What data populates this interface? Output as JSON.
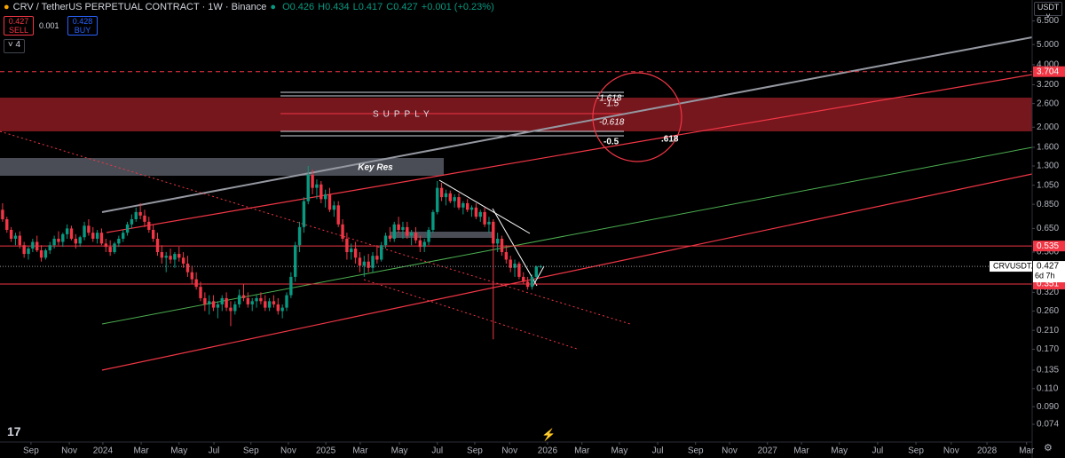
{
  "ui": {
    "symbol": "CRV / TetherUS PERPETUAL CONTRACT · 1W · Binance",
    "quote": [
      "O0.426",
      "H0.434",
      "L0.417",
      "C0.427",
      "+0.001 (+0.23%)"
    ],
    "sell_price": 0.427,
    "sell": "SELL",
    "spread": 0.001,
    "buy_price": 0.428,
    "buy": "BUY",
    "indicators": "4",
    "currency": "USDT",
    "ticker": "CRVUSDT.P",
    "countdown": "6d 7h",
    "logo": "17"
  },
  "chart_data": {
    "type": "candlestick",
    "log_scale": true,
    "up_color": "#089981",
    "down_color": "#f23645",
    "annotations": [
      "SUPPLY",
      "Key Res",
      "-1.618",
      "-1.5",
      "-0.618",
      "-0.5",
      ".618"
    ],
    "price_lines": [
      {
        "value": 3.704,
        "color": "#f23645",
        "dashed": true
      },
      {
        "value": 0.535,
        "color": "#f23645",
        "dashed": false
      },
      {
        "value": 0.351,
        "color": "#f23645",
        "dashed": false
      }
    ],
    "xlim": [
      -0.6,
      239.2
    ],
    "xticks": [
      {
        "value": 6.6,
        "label": "Sep"
      },
      {
        "value": 15.5,
        "label": "Nov"
      },
      {
        "value": 23.3,
        "label": "2024"
      },
      {
        "value": 32.2,
        "label": "Mar"
      },
      {
        "value": 41.0,
        "label": "May"
      },
      {
        "value": 49.1,
        "label": "Jul"
      },
      {
        "value": 57.7,
        "label": "Sep"
      },
      {
        "value": 66.4,
        "label": "Nov"
      },
      {
        "value": 75.1,
        "label": "2025"
      },
      {
        "value": 83.1,
        "label": "Mar"
      },
      {
        "value": 92.2,
        "label": "May"
      },
      {
        "value": 101.0,
        "label": "Jul"
      },
      {
        "value": 109.7,
        "label": "Sep"
      },
      {
        "value": 117.8,
        "label": "Nov"
      },
      {
        "value": 126.6,
        "label": "2026"
      },
      {
        "value": 134.6,
        "label": "Mar"
      },
      {
        "value": 143.3,
        "label": "May"
      },
      {
        "value": 152.2,
        "label": "Jul"
      },
      {
        "value": 161.0,
        "label": "Sep"
      },
      {
        "value": 168.9,
        "label": "Nov"
      },
      {
        "value": 177.7,
        "label": "2027"
      },
      {
        "value": 185.6,
        "label": "Mar"
      },
      {
        "value": 194.4,
        "label": "May"
      },
      {
        "value": 203.3,
        "label": "Jul"
      },
      {
        "value": 212.2,
        "label": "Sep"
      },
      {
        "value": 220.4,
        "label": "Nov"
      },
      {
        "value": 228.7,
        "label": "2028"
      },
      {
        "value": 237.9,
        "label": "Mar"
      }
    ],
    "ylim": [
      0.062,
      8.2
    ],
    "yticks": [
      {
        "value": 6.5,
        "label": "6.500"
      },
      {
        "value": 5,
        "label": "5.000"
      },
      {
        "value": 4,
        "label": "4.000"
      },
      {
        "value": 3.2,
        "label": "3.200"
      },
      {
        "value": 2.6,
        "label": "2.600"
      },
      {
        "value": 2,
        "label": "2.000"
      },
      {
        "value": 1.6,
        "label": "1.600"
      },
      {
        "value": 1.3,
        "label": "1.300"
      },
      {
        "value": 1.05,
        "label": "1.050"
      },
      {
        "value": 0.85,
        "label": "0.850"
      },
      {
        "value": 0.65,
        "label": "0.650"
      },
      {
        "value": 0.5,
        "label": "0.500"
      },
      {
        "value": 0.32,
        "label": "0.320"
      },
      {
        "value": 0.26,
        "label": "0.260"
      },
      {
        "value": 0.21,
        "label": "0.210"
      },
      {
        "value": 0.17,
        "label": "0.170"
      },
      {
        "value": 0.135,
        "label": "0.135"
      },
      {
        "value": 0.11,
        "label": "0.110"
      },
      {
        "value": 0.09,
        "label": "0.090"
      },
      {
        "value": 0.074,
        "label": "0.074"
      }
    ],
    "candles": [
      [
        0.8,
        0.86,
        0.7,
        0.72
      ],
      [
        0.72,
        0.74,
        0.62,
        0.64
      ],
      [
        0.64,
        0.66,
        0.56,
        0.58
      ],
      [
        0.58,
        0.62,
        0.54,
        0.6
      ],
      [
        0.6,
        0.63,
        0.52,
        0.54
      ],
      [
        0.54,
        0.56,
        0.47,
        0.49
      ],
      [
        0.49,
        0.53,
        0.46,
        0.52
      ],
      [
        0.52,
        0.58,
        0.5,
        0.56
      ],
      [
        0.56,
        0.6,
        0.5,
        0.51
      ],
      [
        0.51,
        0.54,
        0.45,
        0.47
      ],
      [
        0.47,
        0.52,
        0.46,
        0.51
      ],
      [
        0.51,
        0.56,
        0.49,
        0.54
      ],
      [
        0.54,
        0.6,
        0.52,
        0.58
      ],
      [
        0.58,
        0.63,
        0.54,
        0.56
      ],
      [
        0.56,
        0.62,
        0.53,
        0.61
      ],
      [
        0.61,
        0.68,
        0.58,
        0.65
      ],
      [
        0.65,
        0.67,
        0.57,
        0.58
      ],
      [
        0.58,
        0.61,
        0.52,
        0.55
      ],
      [
        0.55,
        0.6,
        0.53,
        0.59
      ],
      [
        0.59,
        0.7,
        0.57,
        0.67
      ],
      [
        0.67,
        0.72,
        0.6,
        0.62
      ],
      [
        0.62,
        0.66,
        0.56,
        0.58
      ],
      [
        0.58,
        0.64,
        0.55,
        0.62
      ],
      [
        0.62,
        0.65,
        0.54,
        0.55
      ],
      [
        0.55,
        0.58,
        0.5,
        0.53
      ],
      [
        0.53,
        0.57,
        0.48,
        0.5
      ],
      [
        0.5,
        0.56,
        0.49,
        0.55
      ],
      [
        0.55,
        0.6,
        0.53,
        0.58
      ],
      [
        0.58,
        0.64,
        0.56,
        0.62
      ],
      [
        0.62,
        0.7,
        0.6,
        0.68
      ],
      [
        0.68,
        0.76,
        0.65,
        0.72
      ],
      [
        0.72,
        0.82,
        0.7,
        0.78
      ],
      [
        0.78,
        0.86,
        0.72,
        0.75
      ],
      [
        0.75,
        0.8,
        0.66,
        0.7
      ],
      [
        0.7,
        0.74,
        0.62,
        0.64
      ],
      [
        0.64,
        0.68,
        0.56,
        0.58
      ],
      [
        0.58,
        0.62,
        0.48,
        0.5
      ],
      [
        0.5,
        0.54,
        0.44,
        0.47
      ],
      [
        0.47,
        0.5,
        0.4,
        0.48
      ],
      [
        0.48,
        0.52,
        0.44,
        0.46
      ],
      [
        0.46,
        0.5,
        0.42,
        0.49
      ],
      [
        0.49,
        0.53,
        0.45,
        0.47
      ],
      [
        0.47,
        0.5,
        0.42,
        0.44
      ],
      [
        0.44,
        0.48,
        0.38,
        0.4
      ],
      [
        0.4,
        0.43,
        0.35,
        0.37
      ],
      [
        0.37,
        0.4,
        0.33,
        0.34
      ],
      [
        0.34,
        0.36,
        0.29,
        0.3
      ],
      [
        0.3,
        0.32,
        0.26,
        0.28
      ],
      [
        0.28,
        0.31,
        0.25,
        0.29
      ],
      [
        0.29,
        0.31,
        0.26,
        0.27
      ],
      [
        0.27,
        0.29,
        0.24,
        0.28
      ],
      [
        0.28,
        0.31,
        0.26,
        0.3
      ],
      [
        0.3,
        0.32,
        0.26,
        0.27
      ],
      [
        0.27,
        0.29,
        0.22,
        0.26
      ],
      [
        0.26,
        0.29,
        0.25,
        0.28
      ],
      [
        0.28,
        0.33,
        0.27,
        0.31
      ],
      [
        0.31,
        0.35,
        0.29,
        0.3
      ],
      [
        0.3,
        0.32,
        0.27,
        0.28
      ],
      [
        0.28,
        0.3,
        0.26,
        0.29
      ],
      [
        0.29,
        0.31,
        0.27,
        0.3
      ],
      [
        0.3,
        0.32,
        0.28,
        0.29
      ],
      [
        0.29,
        0.31,
        0.26,
        0.27
      ],
      [
        0.27,
        0.3,
        0.26,
        0.29
      ],
      [
        0.29,
        0.31,
        0.27,
        0.28
      ],
      [
        0.28,
        0.3,
        0.25,
        0.26
      ],
      [
        0.26,
        0.28,
        0.24,
        0.27
      ],
      [
        0.27,
        0.32,
        0.26,
        0.31
      ],
      [
        0.31,
        0.4,
        0.3,
        0.38
      ],
      [
        0.38,
        0.56,
        0.36,
        0.54
      ],
      [
        0.54,
        0.7,
        0.5,
        0.66
      ],
      [
        0.66,
        0.92,
        0.62,
        0.88
      ],
      [
        0.88,
        1.3,
        0.85,
        1.18
      ],
      [
        1.18,
        1.25,
        0.95,
        1.02
      ],
      [
        1.02,
        1.12,
        0.9,
        1.06
      ],
      [
        1.06,
        1.1,
        0.86,
        0.9
      ],
      [
        0.9,
        1.0,
        0.82,
        0.95
      ],
      [
        0.95,
        1.02,
        0.78,
        0.8
      ],
      [
        0.8,
        0.88,
        0.74,
        0.84
      ],
      [
        0.84,
        0.88,
        0.66,
        0.68
      ],
      [
        0.68,
        0.72,
        0.56,
        0.58
      ],
      [
        0.58,
        0.62,
        0.46,
        0.5
      ],
      [
        0.5,
        0.55,
        0.46,
        0.52
      ],
      [
        0.52,
        0.56,
        0.44,
        0.47
      ],
      [
        0.47,
        0.5,
        0.4,
        0.43
      ],
      [
        0.43,
        0.48,
        0.38,
        0.45
      ],
      [
        0.45,
        0.49,
        0.4,
        0.42
      ],
      [
        0.42,
        0.5,
        0.4,
        0.48
      ],
      [
        0.48,
        0.54,
        0.44,
        0.46
      ],
      [
        0.46,
        0.56,
        0.45,
        0.54
      ],
      [
        0.54,
        0.62,
        0.52,
        0.6
      ],
      [
        0.6,
        0.66,
        0.56,
        0.58
      ],
      [
        0.58,
        0.7,
        0.56,
        0.68
      ],
      [
        0.68,
        0.74,
        0.62,
        0.64
      ],
      [
        0.64,
        0.7,
        0.58,
        0.66
      ],
      [
        0.66,
        0.7,
        0.58,
        0.6
      ],
      [
        0.6,
        0.64,
        0.54,
        0.62
      ],
      [
        0.62,
        0.66,
        0.55,
        0.57
      ],
      [
        0.57,
        0.6,
        0.5,
        0.53
      ],
      [
        0.53,
        0.58,
        0.5,
        0.56
      ],
      [
        0.56,
        0.66,
        0.54,
        0.64
      ],
      [
        0.64,
        0.8,
        0.62,
        0.78
      ],
      [
        0.78,
        1.1,
        0.76,
        1.02
      ],
      [
        1.02,
        1.08,
        0.88,
        0.92
      ],
      [
        0.92,
        1.0,
        0.84,
        0.96
      ],
      [
        0.96,
        0.99,
        0.86,
        0.88
      ],
      [
        0.88,
        0.95,
        0.82,
        0.92
      ],
      [
        0.92,
        0.96,
        0.8,
        0.82
      ],
      [
        0.82,
        0.88,
        0.76,
        0.86
      ],
      [
        0.86,
        0.9,
        0.78,
        0.8
      ],
      [
        0.8,
        0.84,
        0.74,
        0.82
      ],
      [
        0.82,
        0.86,
        0.72,
        0.74
      ],
      [
        0.74,
        0.8,
        0.7,
        0.78
      ],
      [
        0.78,
        0.82,
        0.66,
        0.68
      ],
      [
        0.68,
        0.74,
        0.62,
        0.7
      ],
      [
        0.7,
        0.72,
        0.19,
        0.55
      ],
      [
        0.55,
        0.62,
        0.5,
        0.58
      ],
      [
        0.58,
        0.6,
        0.48,
        0.5
      ],
      [
        0.5,
        0.54,
        0.44,
        0.46
      ],
      [
        0.46,
        0.48,
        0.4,
        0.42
      ],
      [
        0.42,
        0.46,
        0.38,
        0.44
      ],
      [
        0.44,
        0.45,
        0.37,
        0.38
      ],
      [
        0.38,
        0.4,
        0.35,
        0.36
      ],
      [
        0.36,
        0.38,
        0.33,
        0.34
      ],
      [
        0.34,
        0.39,
        0.33,
        0.38
      ],
      [
        0.38,
        0.43,
        0.37,
        0.426
      ],
      [
        0.426,
        0.434,
        0.417,
        0.427
      ]
    ]
  }
}
